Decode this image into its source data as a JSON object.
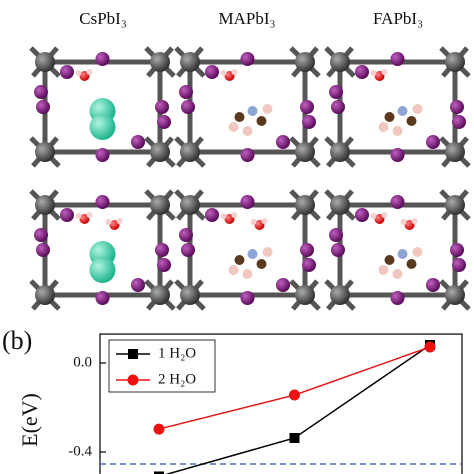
{
  "structure_labels": [
    "CsPbI₃",
    "MAPbI₃",
    "FAPbI₃"
  ],
  "panel_label": "(b)",
  "chart_data": {
    "type": "line",
    "y_label": "E(eV)",
    "categories": [
      null,
      null,
      null
    ],
    "series": [
      {
        "name": "1 H₂O",
        "color": "#000000",
        "marker": "square",
        "values": [
          -0.51,
          -0.337,
          0.081
        ]
      },
      {
        "name": "2 H₂O",
        "color": "#ee1111",
        "marker": "circle",
        "values": [
          -0.297,
          -0.144,
          0.072
        ]
      }
    ],
    "reference_line": {
      "value": -0.454,
      "color": "#4a6fb5"
    },
    "ylim": [
      -0.52,
      0.13
    ],
    "yticks": [
      {
        "value": 0,
        "label": "0.0"
      },
      -0.4
    ],
    "legend": "upper-left"
  }
}
